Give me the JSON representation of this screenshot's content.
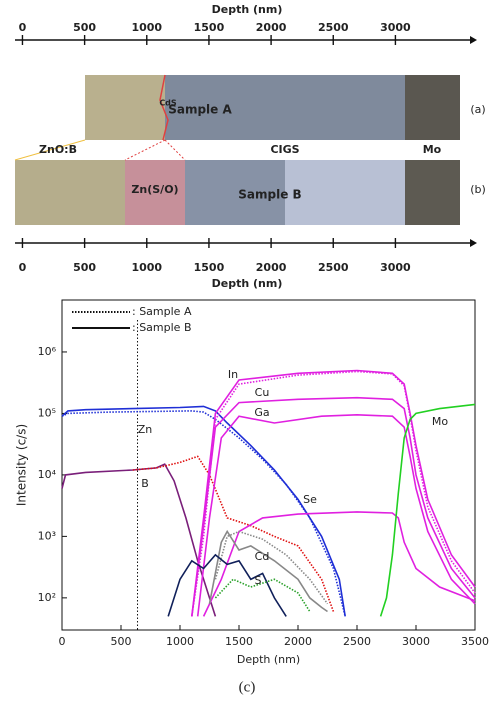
{
  "tem_figure": {
    "top_axis": {
      "label": "Depth (nm)",
      "ticks": [
        0,
        500,
        1000,
        1500,
        2000,
        2500,
        3000
      ]
    },
    "bottom_axis": {
      "label": "Depth (nm)",
      "ticks": [
        0,
        500,
        1000,
        1500,
        2000,
        2500,
        3000
      ]
    },
    "xlim": [
      -60,
      3600
    ],
    "labels": {
      "sample_a": "Sample A",
      "panel_a": "(a)",
      "cds": "CdS",
      "zno": "ZnO:B",
      "cigs": "CIGS",
      "mo": "Mo",
      "zns": "Zn(S/O)",
      "sample_b": "Sample B",
      "panel_b": "(b)"
    }
  },
  "chart_data": {
    "type": "line",
    "x_label": "Depth (nm)",
    "y_label": "Intensity (c/s)",
    "xlim": [
      0,
      3500
    ],
    "xticks": [
      0,
      500,
      1000,
      1500,
      2000,
      2500,
      3000,
      3500
    ],
    "log_y": true,
    "ylim": [
      30,
      7000000
    ],
    "yticks": [
      {
        "value": 100,
        "label": "10²"
      },
      {
        "value": 1000,
        "label": "10³"
      },
      {
        "value": 10000,
        "label": "10⁴"
      },
      {
        "value": 100000,
        "label": "10⁵"
      },
      {
        "value": 1000000,
        "label": "10⁶"
      }
    ],
    "reference_line": 640,
    "legend": [
      {
        "label": ": Sample A",
        "dash": "dotted"
      },
      {
        "label": ": Sample B",
        "dash": "solid"
      }
    ],
    "annotations": [
      "In",
      "Cu",
      "Ga",
      "Zn",
      "B",
      "Se",
      "Cd",
      "S",
      "Mo"
    ],
    "series": [
      {
        "color": "#1f2fd6",
        "dash": "solid",
        "x": [
          0,
          50,
          200,
          600,
          1000,
          1200,
          1300,
          1400,
          1600,
          1800,
          2000,
          2200,
          2350,
          2400
        ],
        "values": [
          90000,
          110000,
          115000,
          120000,
          125000,
          130000,
          110000,
          70000,
          30000,
          12000,
          4000,
          1000,
          200,
          50
        ]
      },
      {
        "color": "#1f2fd6",
        "dash": "dotted",
        "x": [
          0,
          50,
          400,
          800,
          1100,
          1200,
          1300,
          1500,
          1700,
          1900,
          2100,
          2300,
          2400
        ],
        "values": [
          90000,
          100000,
          105000,
          108000,
          110000,
          105000,
          80000,
          40000,
          18000,
          7000,
          2000,
          300,
          50
        ]
      },
      {
        "color": "#7a1f7a",
        "dash": "solid",
        "x": [
          0,
          30,
          200,
          600,
          800,
          870,
          950,
          1050,
          1150,
          1250,
          1300
        ],
        "values": [
          6000,
          10000,
          11000,
          12000,
          13000,
          15000,
          8000,
          2000,
          400,
          100,
          50
        ]
      },
      {
        "color": "#e01010",
        "dash": "dotted",
        "x": [
          600,
          800,
          1000,
          1150,
          1250,
          1400,
          1600,
          1800,
          2000,
          2200,
          2300
        ],
        "values": [
          12000,
          13000,
          16000,
          20000,
          10000,
          2000,
          1500,
          1000,
          700,
          200,
          60
        ]
      },
      {
        "color": "#e020e0",
        "dash": "solid",
        "x": [
          1100,
          1200,
          1300,
          1500,
          2000,
          2500,
          2800,
          2900,
          2950,
          3000,
          3100,
          3300,
          3500
        ],
        "values": [
          50,
          2000,
          100000,
          350000,
          450000,
          500000,
          450000,
          300000,
          100000,
          30000,
          4000,
          500,
          150
        ]
      },
      {
        "color": "#e020e0",
        "dash": "solid",
        "x": [
          1100,
          1200,
          1300,
          1500,
          2000,
          2500,
          2800,
          2900,
          2950,
          3000,
          3100,
          3300,
          3500
        ],
        "values": [
          50,
          1500,
          60000,
          150000,
          170000,
          180000,
          170000,
          120000,
          40000,
          10000,
          2000,
          300,
          100
        ]
      },
      {
        "color": "#e020e0",
        "dash": "solid",
        "x": [
          1150,
          1250,
          1350,
          1500,
          1800,
          2200,
          2500,
          2800,
          2900,
          2950,
          3000,
          3100,
          3300,
          3500
        ],
        "values": [
          50,
          2000,
          40000,
          90000,
          70000,
          90000,
          95000,
          90000,
          60000,
          20000,
          6000,
          1200,
          200,
          80
        ]
      },
      {
        "color": "#e020e0",
        "dash": "dotted",
        "x": [
          1100,
          1200,
          1300,
          1500,
          2000,
          2500,
          2800,
          2900,
          2950,
          3000,
          3100,
          3300,
          3500
        ],
        "values": [
          50,
          1000,
          80000,
          300000,
          420000,
          480000,
          440000,
          280000,
          90000,
          25000,
          3000,
          400,
          120
        ]
      },
      {
        "color": "#e020e0",
        "dash": "solid",
        "x": [
          1200,
          1350,
          1500,
          1700,
          2000,
          2500,
          2800,
          2850,
          2900,
          3000,
          3200,
          3500
        ],
        "values": [
          50,
          200,
          1200,
          2000,
          2300,
          2500,
          2400,
          2000,
          800,
          300,
          150,
          90
        ]
      },
      {
        "color": "#22d022",
        "dash": "solid",
        "x": [
          2700,
          2750,
          2800,
          2850,
          2900,
          2950,
          3000,
          3200,
          3500
        ],
        "values": [
          50,
          100,
          500,
          5000,
          40000,
          80000,
          100000,
          120000,
          140000
        ]
      },
      {
        "color": "#888888",
        "dash": "solid",
        "x": [
          1250,
          1350,
          1400,
          1500,
          1600,
          1800,
          2000,
          2100,
          2200,
          2250
        ],
        "values": [
          80,
          800,
          1200,
          600,
          700,
          400,
          200,
          100,
          70,
          60
        ]
      },
      {
        "color": "#888888",
        "dash": "dotted",
        "x": [
          1300,
          1400,
          1500,
          1700,
          1900,
          2100,
          2250
        ],
        "values": [
          200,
          1000,
          1200,
          900,
          500,
          200,
          80
        ]
      },
      {
        "color": "#10205a",
        "dash": "solid",
        "x": [
          900,
          1000,
          1100,
          1200,
          1300,
          1400,
          1500,
          1600,
          1700,
          1800,
          1900
        ],
        "values": [
          50,
          200,
          400,
          300,
          500,
          350,
          400,
          200,
          250,
          100,
          50
        ]
      },
      {
        "color": "#2aa02a",
        "dash": "dotted",
        "x": [
          1300,
          1450,
          1600,
          1800,
          2000,
          2100
        ],
        "values": [
          100,
          200,
          150,
          200,
          120,
          60
        ]
      }
    ]
  },
  "caption": "(c)"
}
